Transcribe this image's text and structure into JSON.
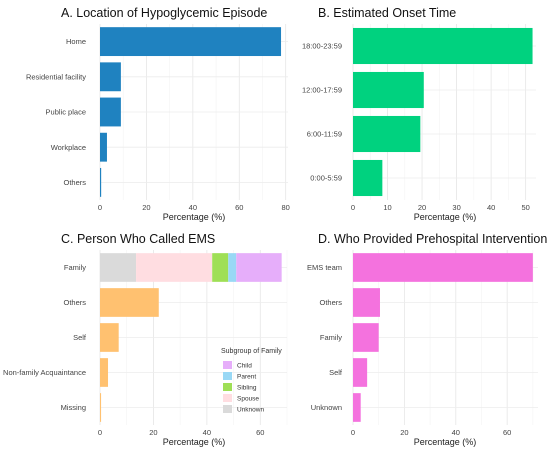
{
  "chart_data": [
    {
      "type": "bar",
      "orientation": "horizontal",
      "title": "A. Location of Hypoglycemic Episode",
      "xlabel": "Percentage (%)",
      "categories": [
        "Home",
        "Residential facility",
        "Public place",
        "Workplace",
        "Others"
      ],
      "values": [
        78,
        9,
        9,
        3,
        0.5
      ],
      "xlim": [
        0,
        81
      ],
      "xticks": [
        "0",
        "20",
        "40",
        "60",
        "80"
      ],
      "xtick_values": [
        0,
        20,
        40,
        60,
        80
      ],
      "color": "#1f82c0",
      "grid": true
    },
    {
      "type": "bar",
      "orientation": "horizontal",
      "title": "B. Estimated Onset Time",
      "xlabel": "Percentage (%)",
      "categories": [
        "18:00-23:59",
        "12:00-17:59",
        "6:00-11:59",
        "0:00-5:59"
      ],
      "values": [
        52,
        20.5,
        19.5,
        8.5
      ],
      "xlim": [
        0,
        53
      ],
      "xticks": [
        "0",
        "10",
        "20",
        "30",
        "40",
        "50"
      ],
      "xtick_values": [
        0,
        10,
        20,
        30,
        40,
        50
      ],
      "color": "#00d27f",
      "grid": true
    },
    {
      "type": "bar",
      "orientation": "horizontal",
      "stacked_first": true,
      "title": "C. Person Who Called EMS",
      "xlabel": "Percentage (%)",
      "categories": [
        "Family",
        "Others",
        "Self",
        "Non-family Acquaintance",
        "Missing"
      ],
      "values": [
        68,
        22,
        7,
        3,
        0.4
      ],
      "xlim": [
        0,
        70
      ],
      "xticks": [
        "0",
        "20",
        "40",
        "60"
      ],
      "xtick_values": [
        0,
        20,
        40,
        60
      ],
      "color": "#ffc170",
      "stack": {
        "category": "Family",
        "segments": [
          {
            "name": "Unknown",
            "value": 13.5,
            "color": "#dadada"
          },
          {
            "name": "Spouse",
            "value": 28.5,
            "color": "#ffdde1"
          },
          {
            "name": "Sibling",
            "value": 6,
            "color": "#9fdf56"
          },
          {
            "name": "Parent",
            "value": 3,
            "color": "#99d8f5"
          },
          {
            "name": "Child",
            "value": 17,
            "color": "#e6aefa"
          }
        ]
      },
      "legend": {
        "title": "Subgroup of Family",
        "placement": "bottom-right",
        "items": [
          {
            "name": "Child",
            "color": "#e6aefa"
          },
          {
            "name": "Parent",
            "color": "#99d8f5"
          },
          {
            "name": "Sibling",
            "color": "#9fdf56"
          },
          {
            "name": "Spouse",
            "color": "#ffdde1"
          },
          {
            "name": "Unknown",
            "color": "#dadada"
          }
        ]
      },
      "grid": true
    },
    {
      "type": "bar",
      "orientation": "horizontal",
      "title": "D. Who Provided Prehospital Intervention",
      "xlabel": "Percentage (%)",
      "categories": [
        "EMS team",
        "Others",
        "Family",
        "Self",
        "Unknown"
      ],
      "values": [
        70,
        10.5,
        10,
        5.5,
        3
      ],
      "xlim": [
        0,
        72
      ],
      "xticks": [
        "0",
        "20",
        "40",
        "60"
      ],
      "xtick_values": [
        0,
        20,
        40,
        60
      ],
      "color": "#f472de",
      "grid": true
    }
  ]
}
